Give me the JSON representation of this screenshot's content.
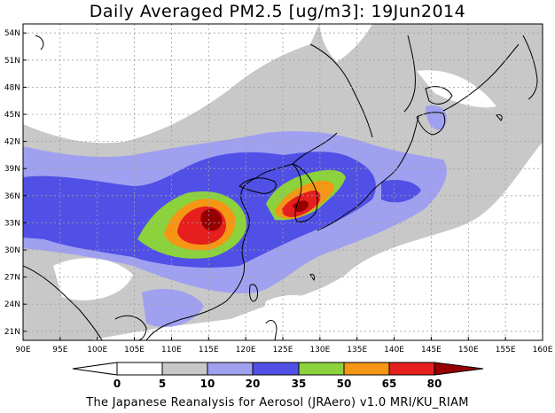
{
  "title": "Daily Averaged PM2.5 [ug/m3]: 19Jun2014",
  "footer": "The Japanese Reanalysis for Aerosol (JRAero) v1.0 MRI/KU_RIAM",
  "map": {
    "lon_range": [
      90,
      160
    ],
    "lat_range": [
      20,
      55
    ],
    "lon_labels": [
      "90E",
      "95E",
      "100E",
      "105E",
      "110E",
      "115E",
      "120E",
      "125E",
      "130E",
      "135E",
      "140E",
      "145E",
      "150E",
      "155E",
      "160E"
    ],
    "lon_values": [
      90,
      95,
      100,
      105,
      110,
      115,
      120,
      125,
      130,
      135,
      140,
      145,
      150,
      155,
      160
    ],
    "lat_labels": [
      "21N",
      "24N",
      "27N",
      "30N",
      "33N",
      "36N",
      "39N",
      "42N",
      "45N",
      "48N",
      "51N",
      "54N"
    ],
    "lat_values": [
      21,
      24,
      27,
      30,
      33,
      36,
      39,
      42,
      45,
      48,
      51,
      54
    ],
    "grid": true
  },
  "colorbar": {
    "labels": [
      "0",
      "5",
      "10",
      "20",
      "35",
      "50",
      "65",
      "80"
    ],
    "colors": [
      "#ffffff",
      "#c8c8c8",
      "#a0a0f0",
      "#5050e6",
      "#8cd23c",
      "#f59614",
      "#e61e1e",
      "#960000"
    ]
  }
}
